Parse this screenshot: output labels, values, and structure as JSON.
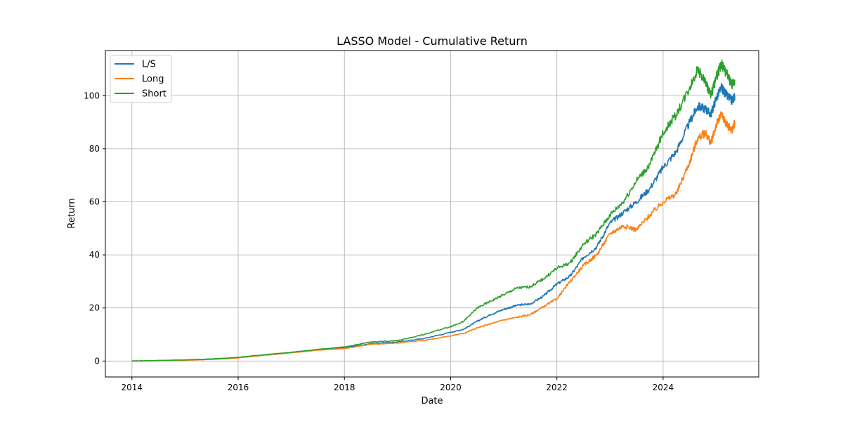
{
  "chart_data": {
    "type": "line",
    "title": "LASSO Model - Cumulative Return",
    "xlabel": "Date",
    "ylabel": "Return",
    "xlim": [
      2013.5,
      2025.8
    ],
    "ylim": [
      -6,
      117
    ],
    "x_ticks": [
      2014,
      2016,
      2018,
      2020,
      2022,
      2024
    ],
    "y_ticks": [
      0,
      20,
      40,
      60,
      80,
      100
    ],
    "grid": true,
    "legend_position": "upper-left",
    "series": [
      {
        "name": "L/S",
        "color": "#1f77b4",
        "points": [
          [
            2014.0,
            0
          ],
          [
            2014.5,
            0.2
          ],
          [
            2015.0,
            0.4
          ],
          [
            2015.5,
            0.7
          ],
          [
            2016.0,
            1.3
          ],
          [
            2016.5,
            2.3
          ],
          [
            2017.0,
            3.2
          ],
          [
            2017.5,
            4.2
          ],
          [
            2018.0,
            5.0
          ],
          [
            2018.5,
            6.6
          ],
          [
            2019.0,
            7.2
          ],
          [
            2019.5,
            8.5
          ],
          [
            2020.0,
            10.8
          ],
          [
            2020.25,
            12.0
          ],
          [
            2020.5,
            15.0
          ],
          [
            2020.75,
            17.5
          ],
          [
            2021.0,
            19.5
          ],
          [
            2021.25,
            21.0
          ],
          [
            2021.5,
            21.5
          ],
          [
            2021.75,
            24.5
          ],
          [
            2022.0,
            29.0
          ],
          [
            2022.25,
            32.0
          ],
          [
            2022.5,
            39.0
          ],
          [
            2022.75,
            43.0
          ],
          [
            2023.0,
            52.0
          ],
          [
            2023.25,
            56.0
          ],
          [
            2023.5,
            60.0
          ],
          [
            2023.75,
            65.0
          ],
          [
            2024.0,
            73.0
          ],
          [
            2024.25,
            79.0
          ],
          [
            2024.5,
            90.0
          ],
          [
            2024.65,
            96.0
          ],
          [
            2024.8,
            95.0
          ],
          [
            2024.9,
            93.0
          ],
          [
            2025.0,
            99.0
          ],
          [
            2025.1,
            103.0
          ],
          [
            2025.2,
            100.0
          ],
          [
            2025.3,
            98.0
          ],
          [
            2025.35,
            100.0
          ]
        ]
      },
      {
        "name": "Long",
        "color": "#ff7f0e",
        "points": [
          [
            2014.0,
            0
          ],
          [
            2014.5,
            0.2
          ],
          [
            2015.0,
            0.3
          ],
          [
            2015.5,
            0.6
          ],
          [
            2016.0,
            1.2
          ],
          [
            2016.5,
            2.2
          ],
          [
            2017.0,
            3.1
          ],
          [
            2017.5,
            4.1
          ],
          [
            2018.0,
            4.7
          ],
          [
            2018.5,
            6.3
          ],
          [
            2019.0,
            6.8
          ],
          [
            2019.5,
            7.8
          ],
          [
            2020.0,
            9.5
          ],
          [
            2020.25,
            10.5
          ],
          [
            2020.5,
            12.5
          ],
          [
            2020.75,
            14.0
          ],
          [
            2021.0,
            15.5
          ],
          [
            2021.25,
            16.5
          ],
          [
            2021.5,
            17.5
          ],
          [
            2021.75,
            20.5
          ],
          [
            2022.0,
            23.5
          ],
          [
            2022.25,
            30.0
          ],
          [
            2022.5,
            36.0
          ],
          [
            2022.75,
            40.0
          ],
          [
            2023.0,
            48.0
          ],
          [
            2023.25,
            51.0
          ],
          [
            2023.5,
            49.5
          ],
          [
            2023.75,
            55.0
          ],
          [
            2024.0,
            60.0
          ],
          [
            2024.25,
            63.0
          ],
          [
            2024.5,
            75.0
          ],
          [
            2024.65,
            84.0
          ],
          [
            2024.8,
            86.0
          ],
          [
            2024.9,
            82.0
          ],
          [
            2025.0,
            89.0
          ],
          [
            2025.1,
            93.0
          ],
          [
            2025.2,
            89.0
          ],
          [
            2025.3,
            87.0
          ],
          [
            2025.35,
            90.0
          ]
        ]
      },
      {
        "name": "Short",
        "color": "#2ca02c",
        "points": [
          [
            2014.0,
            0
          ],
          [
            2014.5,
            0.2
          ],
          [
            2015.0,
            0.4
          ],
          [
            2015.5,
            0.8
          ],
          [
            2016.0,
            1.4
          ],
          [
            2016.5,
            2.4
          ],
          [
            2017.0,
            3.3
          ],
          [
            2017.5,
            4.4
          ],
          [
            2018.0,
            5.3
          ],
          [
            2018.5,
            7.2
          ],
          [
            2019.0,
            7.7
          ],
          [
            2019.5,
            10.0
          ],
          [
            2020.0,
            13.0
          ],
          [
            2020.25,
            15.0
          ],
          [
            2020.5,
            20.0
          ],
          [
            2020.75,
            22.5
          ],
          [
            2021.0,
            25.0
          ],
          [
            2021.25,
            27.5
          ],
          [
            2021.5,
            28.0
          ],
          [
            2021.75,
            31.0
          ],
          [
            2022.0,
            35.0
          ],
          [
            2022.25,
            37.0
          ],
          [
            2022.5,
            44.0
          ],
          [
            2022.75,
            48.0
          ],
          [
            2023.0,
            55.0
          ],
          [
            2023.25,
            60.0
          ],
          [
            2023.5,
            68.0
          ],
          [
            2023.75,
            74.0
          ],
          [
            2024.0,
            86.0
          ],
          [
            2024.25,
            93.0
          ],
          [
            2024.5,
            103.0
          ],
          [
            2024.65,
            110.0
          ],
          [
            2024.8,
            105.0
          ],
          [
            2024.9,
            100.0
          ],
          [
            2025.0,
            107.0
          ],
          [
            2025.1,
            112.0
          ],
          [
            2025.2,
            108.0
          ],
          [
            2025.3,
            104.0
          ],
          [
            2025.35,
            106.0
          ]
        ]
      }
    ]
  }
}
